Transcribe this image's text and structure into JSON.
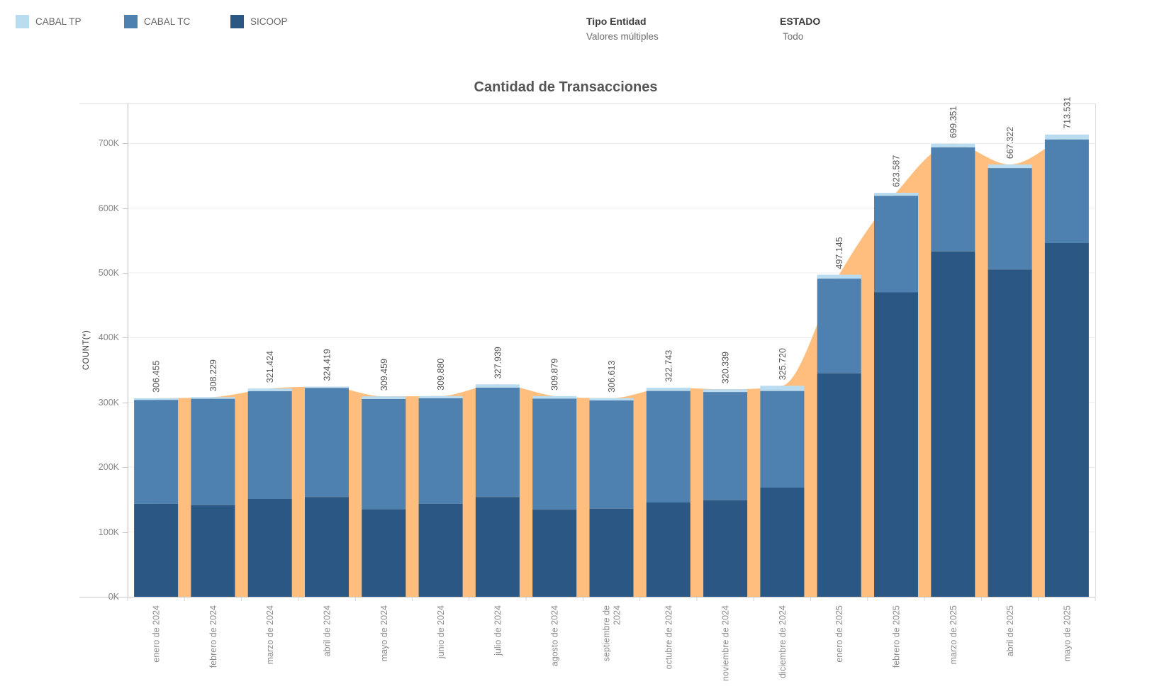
{
  "legend": {
    "items": [
      {
        "label": "CABAL TP",
        "color": "#B9DCF0"
      },
      {
        "label": "CABAL TC",
        "color": "#4E81B0"
      },
      {
        "label": "SICOOP",
        "color": "#2A5783"
      }
    ]
  },
  "filters": [
    {
      "title": "Tipo Entidad",
      "value": "Valores múltiples"
    },
    {
      "title": "ESTADO",
      "value": "Todo"
    }
  ],
  "chart_data": {
    "type": "bar",
    "stacked": true,
    "title": "Cantidad de Transacciones",
    "ylabel": "COUNT(*)",
    "xlabel": "",
    "ylim": [
      0,
      761000
    ],
    "yticks": [
      "0K",
      "100K",
      "200K",
      "300K",
      "400K",
      "500K",
      "600K",
      "700K"
    ],
    "ytick_values": [
      0,
      100000,
      200000,
      300000,
      400000,
      500000,
      600000,
      700000
    ],
    "grid": true,
    "legend_position": "top-left",
    "categories": [
      "enero de 2024",
      "febrero de 2024",
      "marzo de 2024",
      "abril de 2024",
      "mayo de 2024",
      "junio de 2024",
      "julio de 2024",
      "agosto de 2024",
      "septiembre de 2024",
      "octubre de 2024",
      "noviembre de 2024",
      "diciembre de 2024",
      "enero de 2025",
      "febrero de 2025",
      "marzo de 2025",
      "abril de 2025",
      "mayo de 2025"
    ],
    "series": [
      {
        "name": "SICOOP",
        "color": "#2A5783",
        "values": [
          143500,
          141500,
          151000,
          154000,
          135000,
          143500,
          154000,
          134500,
          136000,
          145500,
          149000,
          168500,
          345000,
          470000,
          533000,
          505000,
          546000
        ]
      },
      {
        "name": "CABAL TC",
        "color": "#4E81B0",
        "values": [
          160455,
          164229,
          166424,
          168419,
          170459,
          162880,
          168939,
          171379,
          167113,
          172243,
          167039,
          149220,
          146145,
          149087,
          160851,
          156822,
          160031
        ]
      },
      {
        "name": "CABAL TP",
        "color": "#B9DCF0",
        "values": [
          2500,
          2500,
          4000,
          2000,
          4000,
          3500,
          5000,
          4000,
          3500,
          5000,
          4300,
          8000,
          6000,
          4500,
          5500,
          5500,
          7500
        ]
      }
    ],
    "totals": [
      306455,
      308229,
      321424,
      324419,
      309459,
      309880,
      327939,
      309879,
      306613,
      322743,
      320339,
      325720,
      497145,
      623587,
      699351,
      667322,
      713531
    ],
    "total_labels": [
      "306.455",
      "308.229",
      "321.424",
      "324.419",
      "309.459",
      "309.880",
      "327.939",
      "309.879",
      "306.613",
      "322.743",
      "320.339",
      "325.720",
      "497.145",
      "623.587",
      "699.351",
      "667.322",
      "713.531"
    ],
    "area_overlay": {
      "name": "total-trend-area",
      "color": "#FFBE7D",
      "follows": "totals",
      "smooth": true
    }
  },
  "colors": {
    "gridline": "#ececec",
    "axis_line": "#bdbdbd",
    "plot_border": "#dcdcdc",
    "tick_label": "#878787",
    "bar_value_label": "#575757",
    "x_label": "#8c8c8c"
  }
}
